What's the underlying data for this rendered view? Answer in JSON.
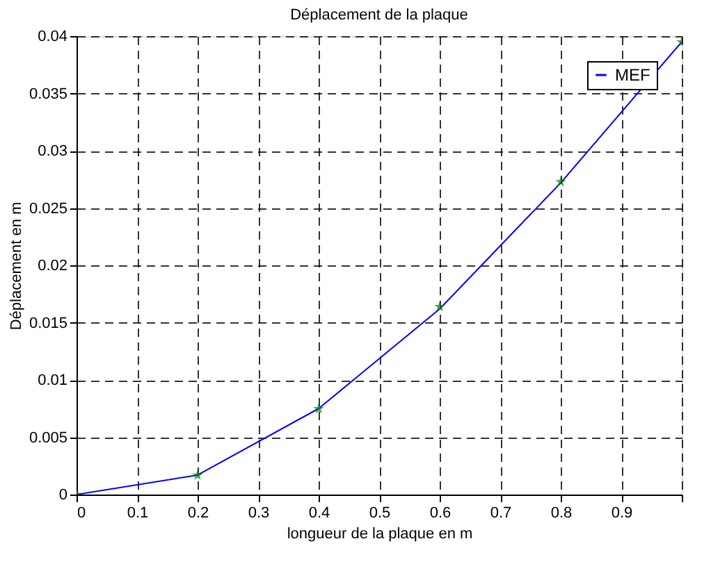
{
  "chart_data": {
    "type": "line",
    "title": "Déplacement de la plaque",
    "xlabel": "longueur de la plaque en m",
    "ylabel": "Déplacement en m",
    "series": [
      {
        "name": "MEF",
        "type": "line",
        "color": "#0000ff",
        "x": [
          0,
          0.2,
          0.4,
          0.6,
          0.8,
          1.0
        ],
        "values": [
          0,
          0.0017,
          0.0075,
          0.0162,
          0.0272,
          0.0395
        ]
      },
      {
        "type": "scatter",
        "color": "#008000",
        "marker": "star",
        "x": [
          0,
          0.2,
          0.4,
          0.6,
          0.8,
          1.0
        ],
        "values": [
          0,
          0.0017,
          0.0075,
          0.0164,
          0.0273,
          0.0395
        ]
      }
    ],
    "xlim": [
      0,
      1
    ],
    "xticks": [
      0,
      0.1,
      0.2,
      0.3,
      0.4,
      0.5,
      0.6,
      0.7,
      0.8,
      0.9,
      {
        "value": 1,
        "label": null
      }
    ],
    "ylim": [
      0,
      0.04
    ],
    "yticks": [
      0,
      0.005,
      0.01,
      0.015,
      0.02,
      0.025,
      0.03,
      0.035,
      0.04
    ],
    "grid": true,
    "legend": "top right"
  }
}
